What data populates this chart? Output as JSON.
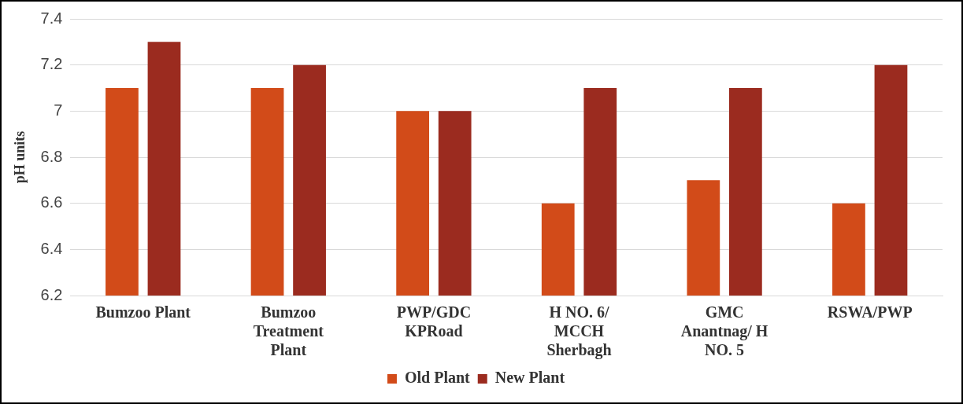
{
  "chart_data": {
    "type": "bar",
    "ylabel": "pH units",
    "categories": [
      "Bumzoo Plant",
      "Bumzoo Treatment Plant",
      "PWP/GDC KPRoad",
      "H NO. 6/ MCCH Sherbagh",
      "GMC Anantnag/ H NO. 5",
      "RSWA/PWP"
    ],
    "series": [
      {
        "name": "Old Plant",
        "color": "#d24b19",
        "values": [
          7.1,
          7.1,
          7.0,
          6.6,
          6.7,
          6.6
        ]
      },
      {
        "name": "New Plant",
        "color": "#9b2b1f",
        "values": [
          7.3,
          7.2,
          7.0,
          7.1,
          7.1,
          7.2
        ]
      }
    ],
    "ylim": [
      6.2,
      7.4
    ],
    "yticks": [
      6.2,
      6.4,
      6.6,
      6.8,
      7,
      7.2,
      7.4
    ],
    "grid": "y",
    "legend": "bottom"
  }
}
